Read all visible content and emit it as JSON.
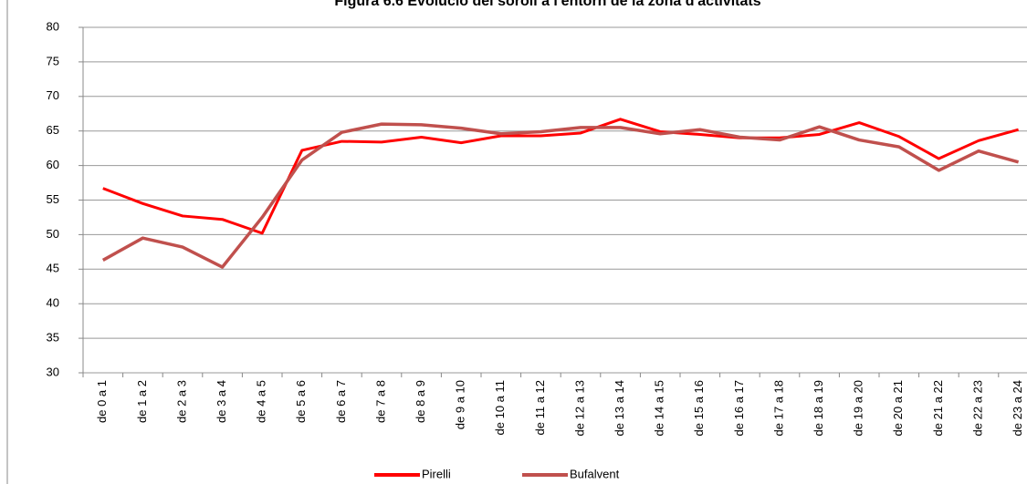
{
  "chart_data": {
    "type": "line",
    "title": "Figura 6.6 Evolució del soroll a l'entorn de la zona d'activitats",
    "categories": [
      "de 0 a 1",
      "de 1 a 2",
      "de 2 a 3",
      "de 3 a 4",
      "de 4 a 5",
      "de 5 a 6",
      "de 6 a 7",
      "de 7 a 8",
      "de 8 a 9",
      "de 9 a 10",
      "de 10 a 11",
      "de 11 a 12",
      "de 12 a 13",
      "de 13 a 14",
      "de 14 a 15",
      "de 15 a 16",
      "de 16 a 17",
      "de 17 a 18",
      "de 18 a 19",
      "de 19 a 20",
      "de 20 a 21",
      "de 21 a 22",
      "de 22 a 23",
      "de 23 a 24"
    ],
    "series": [
      {
        "name": "Pirelli",
        "color": "#ff0000",
        "values": [
          56.7,
          54.5,
          52.7,
          52.2,
          50.2,
          62.2,
          63.5,
          63.4,
          64.1,
          63.3,
          64.3,
          64.3,
          64.7,
          66.7,
          64.9,
          64.5,
          64.0,
          64.0,
          64.5,
          66.2,
          64.2,
          61.0,
          63.6,
          65.2
        ]
      },
      {
        "name": "Bufalvent",
        "color": "#c0504d",
        "values": [
          46.3,
          49.5,
          48.2,
          45.3,
          52.5,
          60.8,
          64.8,
          66.0,
          65.9,
          65.4,
          64.6,
          64.9,
          65.5,
          65.5,
          64.6,
          65.2,
          64.1,
          63.7,
          65.6,
          63.7,
          62.7,
          59.3,
          62.1,
          60.5
        ]
      }
    ],
    "ylim": [
      30,
      80
    ],
    "yticks": [
      30,
      35,
      40,
      45,
      50,
      55,
      60,
      65,
      70,
      75,
      80
    ],
    "grid": true,
    "legend": "bottom"
  }
}
